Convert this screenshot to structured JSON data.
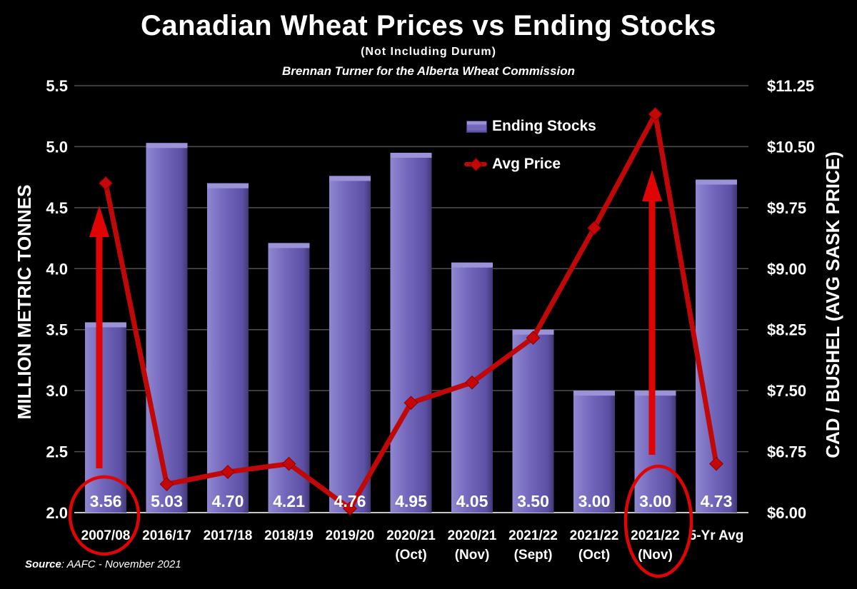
{
  "title": "Canadian Wheat Prices vs Ending Stocks",
  "subtitle": "(Not Including Durum)",
  "attribution": "Brennan Turner for the Alberta Wheat Commission",
  "source": {
    "bold": "Source",
    "rest": ": AAFC - November 2021"
  },
  "legend": {
    "bars_label": "Ending Stocks",
    "line_label": "Avg Price"
  },
  "colors": {
    "background": "#000000",
    "text": "#ffffff",
    "bar_light": "#9a93d8",
    "bar_main": "#7468bd",
    "bar_dark": "#453a80",
    "line": "#c00808",
    "marker": "#c40808",
    "annotation": "#e00404",
    "gridline": "#4f4f4f",
    "axis_line": "#c8c8c8"
  },
  "chart_data": {
    "type": "combo (bar + line, dual axis)",
    "categories": [
      "2007/08",
      "2016/17",
      "2017/18",
      "2018/19",
      "2019/20",
      "2020/21 (Oct)",
      "2020/21 (Nov)",
      "2021/22 (Sept)",
      "2021/22 (Oct)",
      "2021/22 (Nov)",
      "5-Yr Avg"
    ],
    "category_lines": [
      [
        "2007/08"
      ],
      [
        "2016/17"
      ],
      [
        "2017/18"
      ],
      [
        "2018/19"
      ],
      [
        "2019/20"
      ],
      [
        "2020/21",
        "(Oct)"
      ],
      [
        "2020/21",
        "(Nov)"
      ],
      [
        "2021/22",
        "(Sept)"
      ],
      [
        "2021/22",
        "(Oct)"
      ],
      [
        "2021/22",
        "(Nov)"
      ],
      [
        "5-Yr Avg"
      ]
    ],
    "series": [
      {
        "name": "Ending Stocks",
        "type": "bar",
        "axis": "left",
        "values": [
          3.56,
          5.03,
          4.7,
          4.21,
          4.76,
          4.95,
          4.05,
          3.5,
          3.0,
          3.0,
          4.73
        ],
        "labels": [
          "3.56",
          "5.03",
          "4.70",
          "4.21",
          "4.76",
          "4.95",
          "4.05",
          "3.50",
          "3.00",
          "3.00",
          "4.73"
        ]
      },
      {
        "name": "Avg Price",
        "type": "line",
        "axis": "right",
        "values": [
          10.05,
          6.35,
          6.5,
          6.6,
          6.05,
          7.35,
          7.6,
          8.15,
          9.5,
          10.9,
          6.6
        ]
      }
    ],
    "left_axis": {
      "label": "MILLION METRIC TONNES",
      "min": 2.0,
      "max": 5.5,
      "step": 0.5,
      "ticks_top_to_bottom": [
        "5.5",
        "5.0",
        "4.5",
        "4.0",
        "3.5",
        "3.0",
        "2.5",
        "2.0"
      ]
    },
    "right_axis": {
      "label": "CAD / BUSHEL (AVG SASK PRICE)",
      "min": 6.0,
      "max": 11.25,
      "step": 0.75,
      "ticks_top_to_bottom": [
        "$11.25",
        "$10.50",
        "$9.75",
        "$9.00",
        "$8.25",
        "$7.50",
        "$6.75",
        "$6.00"
      ]
    },
    "grid": "horizontal gridlines on black background",
    "legend_position": "upper middle-right, stacked",
    "annotations": {
      "circled_categories": [
        "2007/08",
        "2021/22 (Nov)"
      ],
      "up_arrow_categories": [
        "2007/08",
        "2021/22 (Nov)"
      ]
    }
  }
}
